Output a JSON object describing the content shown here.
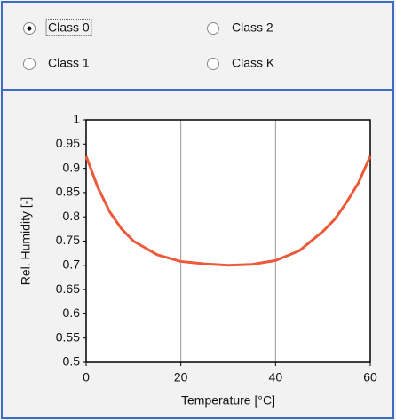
{
  "options": [
    {
      "label": "Class 0",
      "selected": true
    },
    {
      "label": "Class 2",
      "selected": false
    },
    {
      "label": "Class 1",
      "selected": false
    },
    {
      "label": "Class K",
      "selected": false
    }
  ],
  "chart_data": {
    "type": "line",
    "xlabel": "Temperature [°C]",
    "ylabel": "Rel. Humidity [-]",
    "x": [
      0,
      2.5,
      5,
      7.5,
      10,
      15,
      20,
      25,
      30,
      35,
      40,
      45,
      50,
      52.5,
      55,
      57.5,
      60
    ],
    "series": [
      {
        "name": "Class 0",
        "color": "#ec5a3a",
        "values": [
          0.925,
          0.86,
          0.81,
          0.775,
          0.75,
          0.722,
          0.708,
          0.703,
          0.7,
          0.702,
          0.71,
          0.73,
          0.77,
          0.795,
          0.83,
          0.87,
          0.925
        ]
      }
    ],
    "xlim": [
      0,
      60
    ],
    "xticks": [
      0,
      20,
      40,
      60
    ],
    "ylim": [
      0.5,
      1
    ],
    "yticks": [
      0.5,
      0.55,
      0.6,
      0.65,
      0.7,
      0.75,
      0.8,
      0.85,
      0.9,
      0.95,
      1
    ],
    "grid": "x"
  }
}
